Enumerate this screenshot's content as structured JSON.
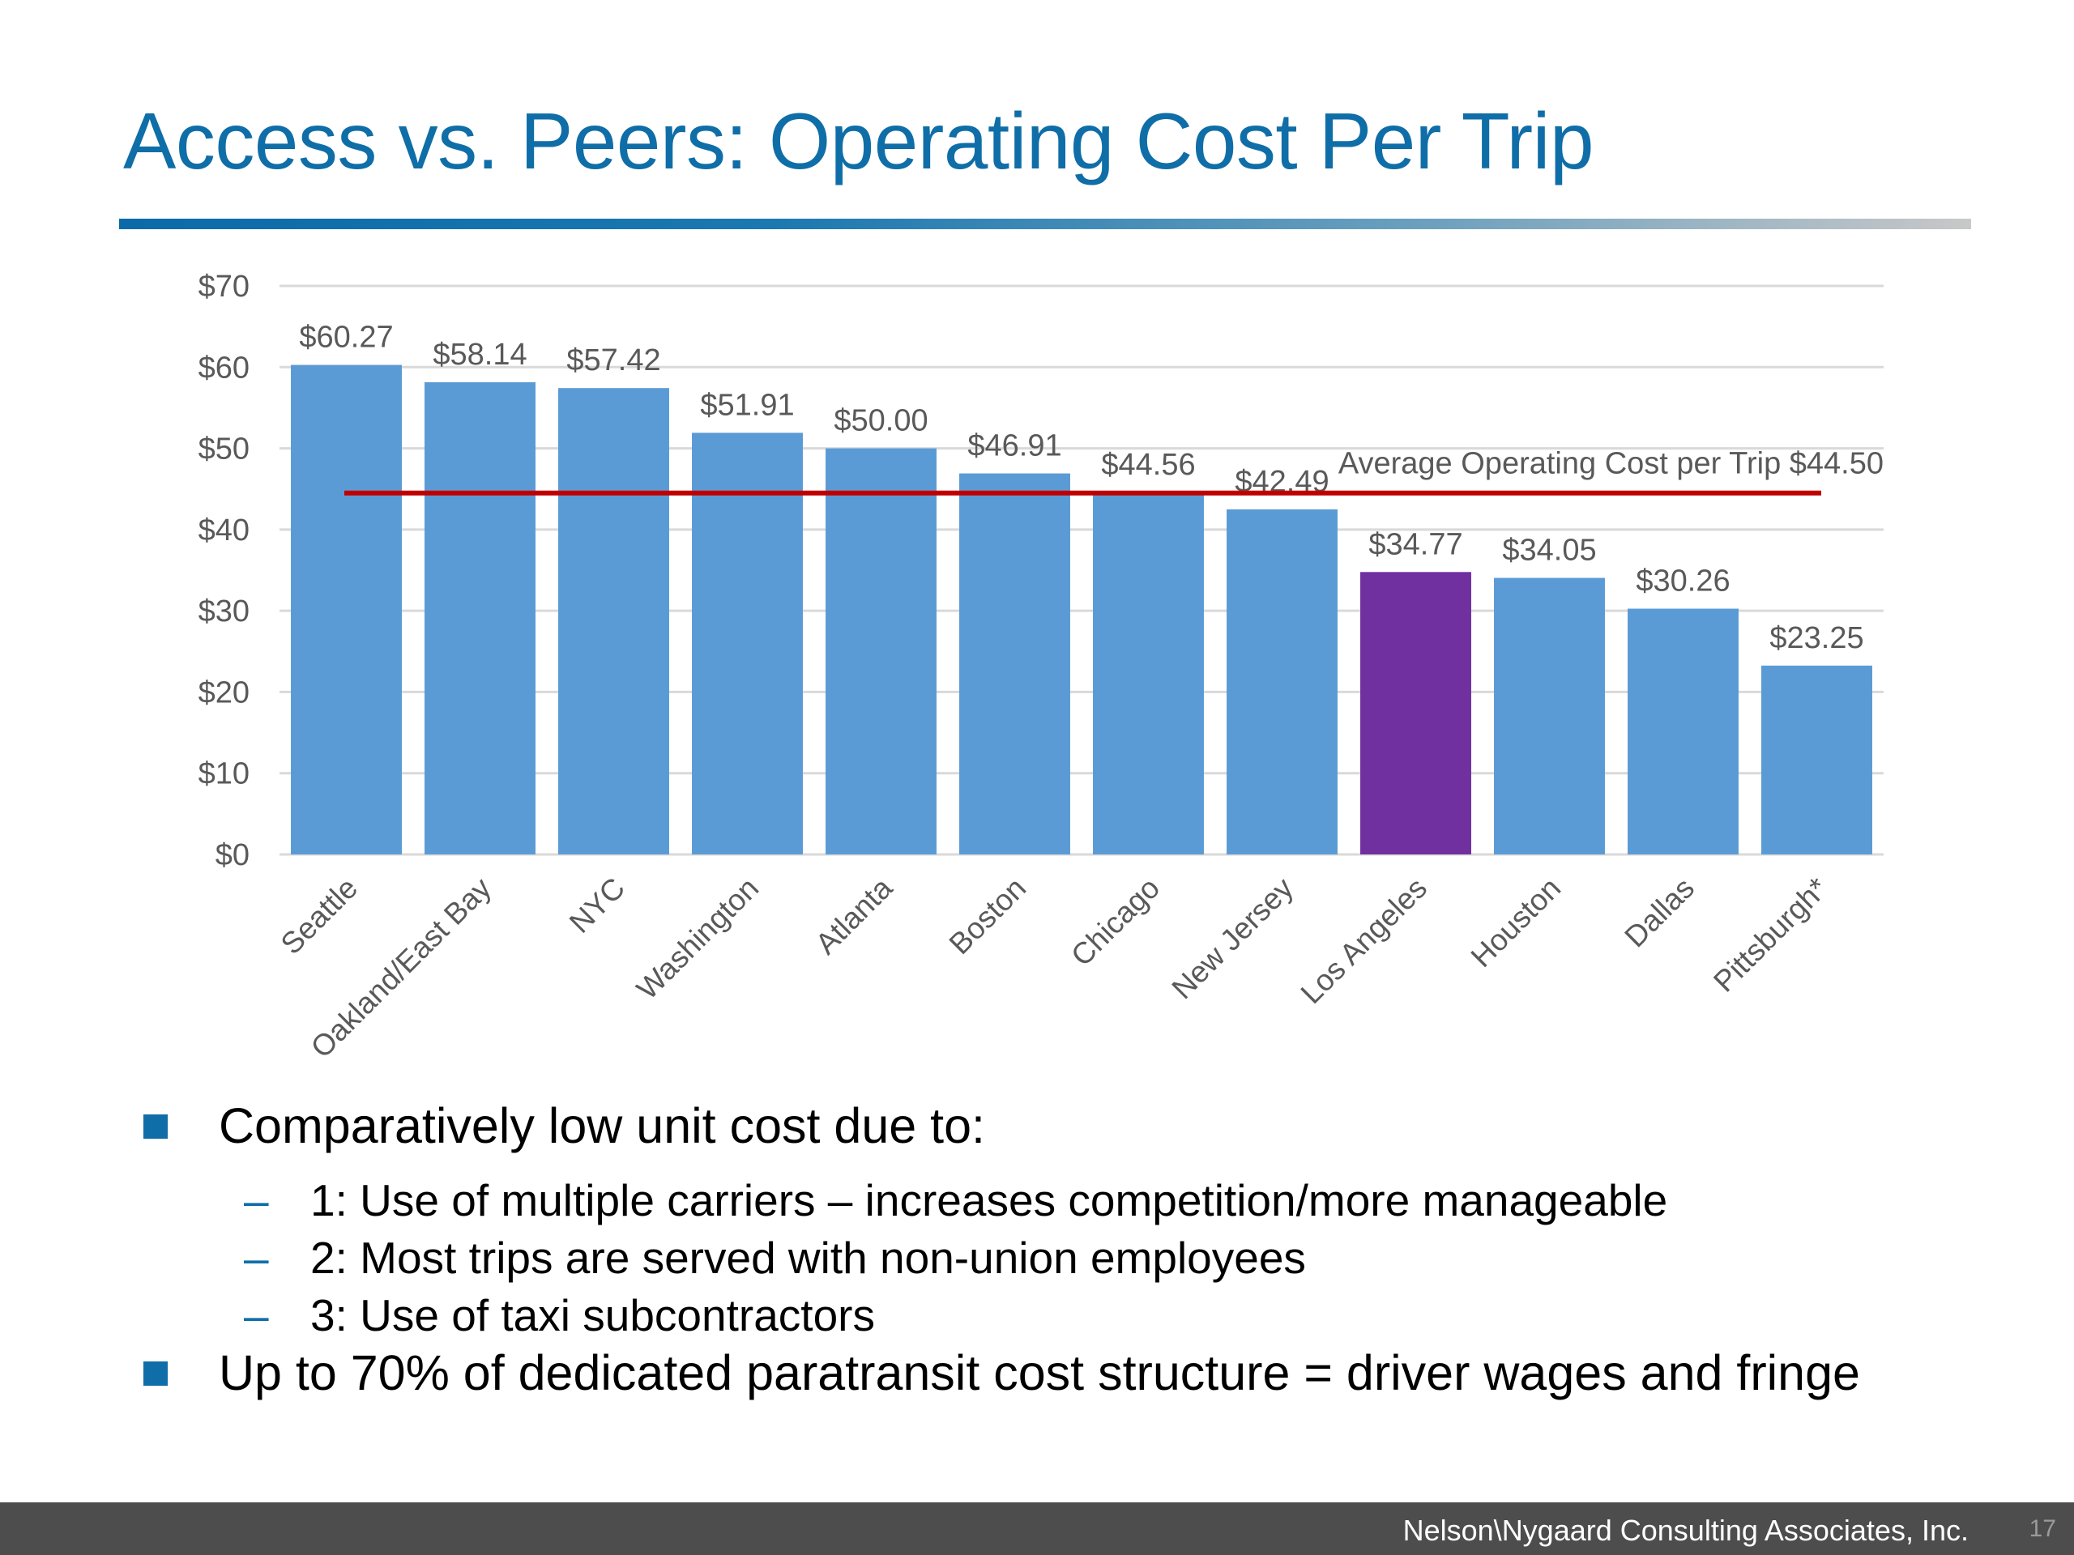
{
  "slide": {
    "title": "Access vs. Peers: Operating Cost Per Trip",
    "footer_company": "Nelson\\Nygaard Consulting Associates, Inc.",
    "page_number": "17"
  },
  "bullets": [
    {
      "text": "Comparatively low unit cost due to:",
      "subitems": [
        "1: Use of multiple carriers – increases competition/more manageable",
        "2: Most trips are served with non-union employees",
        "3: Use of taxi subcontractors"
      ]
    },
    {
      "text": "Up to 70% of dedicated paratransit cost structure = driver wages and fringe",
      "subitems": []
    }
  ],
  "chart_data": {
    "type": "bar",
    "categories": [
      "Seattle",
      "Oakland/East Bay",
      "NYC",
      "Washington",
      "Atlanta",
      "Boston",
      "Chicago",
      "New Jersey",
      "Los Angeles",
      "Houston",
      "Dallas",
      "Pittsburgh*"
    ],
    "values": [
      60.27,
      58.14,
      57.42,
      51.91,
      50.0,
      46.91,
      44.56,
      42.49,
      34.77,
      34.05,
      30.26,
      23.25
    ],
    "data_labels": [
      "$60.27",
      "$58.14",
      "$57.42",
      "$51.91",
      "$50.00",
      "$46.91",
      "$44.56",
      "$42.49",
      "$34.77",
      "$34.05",
      "$30.26",
      "$23.25"
    ],
    "highlight_category": "Los Angeles",
    "ylim": [
      0,
      70
    ],
    "yticks": [
      0,
      10,
      20,
      30,
      40,
      50,
      60,
      70
    ],
    "ytick_labels": [
      "$0",
      "$10",
      "$20",
      "$30",
      "$40",
      "$50",
      "$60",
      "$70"
    ],
    "reference_line": {
      "value": 44.5,
      "label": "Average Operating Cost per Trip $44.50"
    },
    "grid": true,
    "colors": {
      "bar": "#5b9bd5",
      "highlight": "#7030a0",
      "reference_line": "#c00000",
      "grid": "#d9d9d9"
    }
  }
}
